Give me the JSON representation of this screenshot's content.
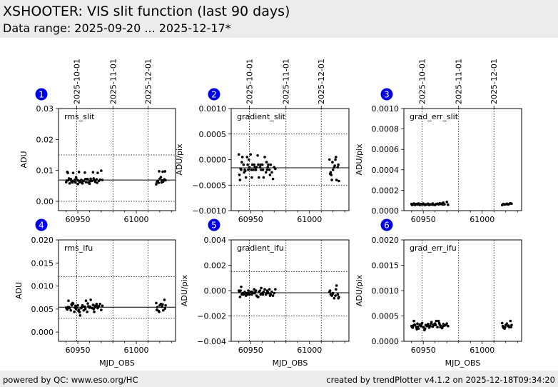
{
  "header": {
    "title": "XSHOOTER: VIS slit function (last 90 days)",
    "subtitle": "Data range: 2025-09-20 ... 2025-12-17*"
  },
  "footer": {
    "left": "powered by QC: www.eso.org/HC",
    "right": "created by trendPlotter v4.1.2 on 2025-12-18T09:34:20"
  },
  "colors": {
    "badge": "#0000ee",
    "points": "#000000",
    "header_bg": "#ececec"
  },
  "chart_data": [
    {
      "type": "scatter",
      "panel_number": "1",
      "label": "rms_slit",
      "ylabel": "ADU",
      "xlabel": "",
      "xlim": [
        60933.5,
        61033.5
      ],
      "ylim": [
        -0.003,
        0.03
      ],
      "yticks": [
        0.0,
        0.01,
        0.02,
        0.03
      ],
      "ytick_labels": [
        "0.00",
        "0.01",
        "0.02",
        "0.03"
      ],
      "xticks": [
        60950,
        61000
      ],
      "xtick_labels": [
        "60950",
        "61000"
      ],
      "top_date_ticks": [
        {
          "mjd": 60949,
          "label": "2025-10-01"
        },
        {
          "mjd": 60980,
          "label": "2025-11-01"
        },
        {
          "mjd": 61010,
          "label": "2025-12-01"
        }
      ],
      "reference_line": 0.0069,
      "threshold_lines": [
        0.015,
        0.0
      ],
      "grid": "dates-vertical",
      "points": {
        "x": [
          60940,
          60941,
          60942,
          60943,
          60944,
          60945,
          60946,
          60947,
          60948,
          60949,
          60950,
          60951,
          60952,
          60953,
          60954,
          60955,
          60956,
          60957,
          60958,
          60959,
          60960,
          60961,
          60962,
          60963,
          60964,
          60965,
          60966,
          60967,
          60968,
          60970,
          60971,
          60940.5,
          60942.5,
          60945.5,
          60948.5,
          60951.5,
          60954.5,
          60958.5,
          60963.5,
          60966.5,
          60941.5,
          60944.5,
          60947.5,
          60950.5,
          60953.5,
          60956.5,
          60960.5,
          60964.5,
          60969,
          61017,
          61018,
          61019,
          61020,
          61021,
          61022,
          61023,
          61024,
          61025,
          61017.5,
          61019.5,
          61022.5,
          61024.5,
          61018.5,
          61021.5
        ],
        "y": [
          0.0062,
          0.0095,
          0.0068,
          0.0058,
          0.0072,
          0.0063,
          0.0092,
          0.0066,
          0.0061,
          0.0071,
          0.0056,
          0.0095,
          0.0064,
          0.0069,
          0.0058,
          0.0066,
          0.0093,
          0.0062,
          0.0072,
          0.0061,
          0.0057,
          0.0073,
          0.0066,
          0.0094,
          0.0068,
          0.0063,
          0.0071,
          0.0092,
          0.0066,
          0.0099,
          0.0069,
          0.0067,
          0.0074,
          0.0061,
          0.0078,
          0.0062,
          0.0066,
          0.0071,
          0.0074,
          0.006,
          0.0092,
          0.0065,
          0.007,
          0.0067,
          0.006,
          0.0072,
          0.0065,
          0.0067,
          0.007,
          0.0055,
          0.0064,
          0.006,
          0.0073,
          0.0078,
          0.0068,
          0.0064,
          0.0071,
          0.0068,
          0.0062,
          0.0097,
          0.0096,
          0.0097,
          0.0066,
          0.0061
        ]
      }
    },
    {
      "type": "scatter",
      "panel_number": "2",
      "label": "gradient_slit",
      "ylabel": "ADU/pix",
      "xlabel": "",
      "xlim": [
        60933.5,
        61033.5
      ],
      "ylim": [
        -0.001,
        0.001
      ],
      "yticks": [
        -0.001,
        -0.0005,
        0.0,
        0.0005,
        0.001
      ],
      "ytick_labels": [
        "−0.0010",
        "−0.0005",
        "0.0000",
        "0.0005",
        "0.0010"
      ],
      "xticks": [
        60950,
        61000
      ],
      "xtick_labels": [
        "60950",
        "61000"
      ],
      "top_date_ticks": [
        {
          "mjd": 60949,
          "label": "2025-10-01"
        },
        {
          "mjd": 60980,
          "label": "2025-11-01"
        },
        {
          "mjd": 61010,
          "label": "2025-12-01"
        }
      ],
      "reference_line": -0.00016,
      "threshold_lines": [
        0.0005,
        -0.0005
      ],
      "grid": "dates-vertical",
      "points": {
        "x": [
          60940,
          60941,
          60942,
          60943,
          60944,
          60945,
          60946,
          60947,
          60948,
          60949,
          60950,
          60951,
          60952,
          60953,
          60954,
          60955,
          60956,
          60957,
          60958,
          60959,
          60960,
          60961,
          60962,
          60963,
          60964,
          60965,
          60966,
          60967,
          60968,
          60970,
          60971,
          60940.5,
          60942.5,
          60945.5,
          60948.5,
          60951.5,
          60954.5,
          60958.5,
          60963.5,
          60966.5,
          60941.5,
          60944.5,
          60947.5,
          60950.5,
          60953.5,
          60956.5,
          60960.5,
          60964.5,
          60969,
          61017,
          61018,
          61019,
          61020,
          61021,
          61022,
          61023,
          61024,
          61025,
          61017.5,
          61019.5,
          61022.5,
          61024.5,
          61018.5,
          61021.5
        ],
        "y": [
          0.0001,
          -0.0004,
          -0.0002,
          5e-05,
          -0.0001,
          -0.0002,
          -0.00035,
          5e-05,
          -0.0002,
          -0.00015,
          0.0001,
          -0.00035,
          -0.0002,
          -0.0001,
          -0.0002,
          -0.00015,
          8e-05,
          -0.00035,
          -0.00015,
          -0.0002,
          -0.0001,
          -0.00035,
          5e-05,
          -0.00025,
          -0.0002,
          -0.0001,
          -0.0002,
          -0.0001,
          -0.00025,
          -0.00015,
          -0.00018,
          -0.0003,
          -5e-05,
          -0.00022,
          0.0,
          -0.0001,
          -0.0002,
          -0.0001,
          -5e-05,
          -0.0003,
          -0.00018,
          -0.00025,
          -0.0001,
          -0.0002,
          -0.00015,
          -0.0001,
          -0.0002,
          -0.00015,
          -0.00038,
          0.0,
          -0.00025,
          -0.0004,
          -0.0002,
          -0.00015,
          0.0,
          -0.0004,
          -0.00015,
          -0.00042,
          -0.00028,
          -5e-05,
          5e-05,
          -0.0001,
          -0.0003,
          -0.00012
        ]
      }
    },
    {
      "type": "scatter",
      "panel_number": "3",
      "label": "grad_err_slit",
      "ylabel": "ADU/pix",
      "xlabel": "",
      "xlim": [
        60933.5,
        61033.5
      ],
      "ylim": [
        0.0,
        0.001
      ],
      "yticks": [
        0.0,
        0.0002,
        0.0004,
        0.0006,
        0.0008,
        0.001
      ],
      "ytick_labels": [
        "0.0000",
        "0.0002",
        "0.0004",
        "0.0006",
        "0.0008",
        "0.0010"
      ],
      "xticks": [
        60950,
        61000
      ],
      "xtick_labels": [
        "60950",
        "61000"
      ],
      "top_date_ticks": [
        {
          "mjd": 60949,
          "label": "2025-10-01"
        },
        {
          "mjd": 60980,
          "label": "2025-11-01"
        },
        {
          "mjd": 61010,
          "label": "2025-12-01"
        }
      ],
      "reference_line": null,
      "threshold_lines": [],
      "grid": "dates-vertical",
      "points": {
        "x": [
          60940,
          60941,
          60942,
          60943,
          60944,
          60945,
          60946,
          60947,
          60948,
          60949,
          60950,
          60951,
          60952,
          60953,
          60954,
          60955,
          60956,
          60957,
          60958,
          60959,
          60960,
          60961,
          60962,
          60963,
          60964,
          60965,
          60966,
          60967,
          60968,
          60970,
          60971,
          60940.5,
          60942.5,
          60945.5,
          60948.5,
          60951.5,
          60954.5,
          60958.5,
          60963.5,
          60966.5,
          61017,
          61018,
          61019,
          61020,
          61021,
          61022,
          61023,
          61024,
          61025
        ],
        "y": [
          6.5e-05,
          6e-05,
          7e-05,
          5.5e-05,
          6.5e-05,
          6e-05,
          7e-05,
          5.5e-05,
          6.5e-05,
          6e-05,
          7e-05,
          5.8e-05,
          6.2e-05,
          6e-05,
          6.8e-05,
          5.5e-05,
          6.2e-05,
          6e-05,
          7e-05,
          5.8e-05,
          5.5e-05,
          6.5e-05,
          6.8e-05,
          6e-05,
          7.2e-05,
          6.5e-05,
          7e-05,
          7.8e-05,
          6.2e-05,
          8.5e-05,
          5.8e-05,
          5.5e-05,
          6e-05,
          6.8e-05,
          6.2e-05,
          5.5e-05,
          6.2e-05,
          5.8e-05,
          6.5e-05,
          6e-05,
          5.5e-05,
          6.5e-05,
          6e-05,
          6.2e-05,
          6.8e-05,
          6e-05,
          6.5e-05,
          7.2e-05,
          6.8e-05
        ]
      }
    },
    {
      "type": "scatter",
      "panel_number": "4",
      "label": "rms_ifu",
      "ylabel": "ADU",
      "xlabel": "MJD_OBS",
      "xlim": [
        60933.5,
        61033.5
      ],
      "ylim": [
        -0.002,
        0.02
      ],
      "yticks": [
        0.0,
        0.005,
        0.01,
        0.015,
        0.02
      ],
      "ytick_labels": [
        "0.000",
        "0.005",
        "0.010",
        "0.015",
        "0.020"
      ],
      "xticks": [
        60950,
        61000
      ],
      "xtick_labels": [
        "60950",
        "61000"
      ],
      "top_date_ticks": [],
      "reference_line": 0.0054,
      "threshold_lines": [
        0.012,
        0.003
      ],
      "grid": "dates-vertical",
      "points": {
        "x": [
          60940,
          60941,
          60942,
          60943,
          60944,
          60945,
          60946,
          60947,
          60948,
          60949,
          60950,
          60951,
          60952,
          60953,
          60954,
          60955,
          60956,
          60957,
          60958,
          60959,
          60960,
          60961,
          60962,
          60963,
          60964,
          60965,
          60966,
          60967,
          60968,
          60970,
          60971,
          60940.5,
          60942.5,
          60945.5,
          60948.5,
          60951.5,
          60954.5,
          60958.5,
          60963.5,
          60966.5,
          60941.5,
          60944.5,
          60947.5,
          60950.5,
          60953.5,
          60956.5,
          60960.5,
          60964.5,
          60969,
          61017,
          61018,
          61019,
          61020,
          61021,
          61022,
          61023,
          61024,
          61025,
          61017.5,
          61019.5,
          61022.5,
          61024.5
        ],
        "y": [
          0.0053,
          0.0049,
          0.0068,
          0.0052,
          0.0047,
          0.0058,
          0.0062,
          0.0044,
          0.0057,
          0.0053,
          0.0058,
          0.0049,
          0.0036,
          0.0052,
          0.0058,
          0.0047,
          0.0055,
          0.0068,
          0.0044,
          0.0056,
          0.0053,
          0.007,
          0.0052,
          0.0059,
          0.0044,
          0.0054,
          0.0061,
          0.0052,
          0.0056,
          0.0048,
          0.0057,
          0.0051,
          0.0054,
          0.0063,
          0.005,
          0.0043,
          0.0055,
          0.0062,
          0.005,
          0.0056,
          0.0054,
          0.006,
          0.0053,
          0.0046,
          0.0055,
          0.005,
          0.0055,
          0.0057,
          0.0061,
          0.0063,
          0.0054,
          0.0046,
          0.0058,
          0.0061,
          0.0055,
          0.0047,
          0.007,
          0.0058,
          0.0048,
          0.0044,
          0.006,
          0.0051
        ]
      }
    },
    {
      "type": "scatter",
      "panel_number": "5",
      "label": "gradient_ifu",
      "ylabel": "ADU/pix",
      "xlabel": "MJD_OBS",
      "xlim": [
        60933.5,
        61033.5
      ],
      "ylim": [
        -0.004,
        0.004
      ],
      "yticks": [
        -0.004,
        -0.002,
        0.0,
        0.002,
        0.004
      ],
      "ytick_labels": [
        "−0.004",
        "−0.002",
        "0.000",
        "0.002",
        "0.004"
      ],
      "xticks": [
        60950,
        61000
      ],
      "xtick_labels": [
        "60950",
        "61000"
      ],
      "top_date_ticks": [],
      "reference_line": -0.00017,
      "threshold_lines": [
        0.0015,
        -0.002
      ],
      "grid": "dates-vertical",
      "points": {
        "x": [
          60940,
          60941,
          60942,
          60943,
          60944,
          60945,
          60946,
          60947,
          60948,
          60949,
          60950,
          60951,
          60952,
          60953,
          60954,
          60955,
          60956,
          60957,
          60958,
          60959,
          60960,
          60961,
          60962,
          60963,
          60964,
          60965,
          60966,
          60967,
          60968,
          60970,
          60971,
          60940.5,
          60942.5,
          60945.5,
          60948.5,
          60951.5,
          60954.5,
          60958.5,
          60963.5,
          60966.5,
          60941.5,
          60944.5,
          60947.5,
          60950.5,
          60953.5,
          60956.5,
          60960.5,
          60964.5,
          60969,
          61017,
          61018,
          61019,
          61020,
          61021,
          61022,
          61023,
          61024,
          61025,
          61017.5,
          61019.5,
          61022.5,
          61024.5
        ],
        "y": [
          0.0,
          -0.0005,
          0.0003,
          -0.0002,
          -0.0003,
          -0.0001,
          -0.0004,
          -0.0002,
          0.0,
          -0.0003,
          -0.0001,
          -0.0003,
          -0.0002,
          0.0001,
          -0.0001,
          -0.0004,
          -0.0005,
          -0.0001,
          0.0,
          0.0002,
          -0.0002,
          -0.0001,
          0.0001,
          -0.0003,
          0.0,
          -0.0002,
          0.0001,
          -0.0003,
          -0.0001,
          -0.0002,
          0.0001,
          -0.0001,
          -0.0003,
          -0.0002,
          -0.0002,
          -0.0001,
          0.0,
          -0.0003,
          -0.0002,
          -0.0004,
          0.0,
          -0.0002,
          -0.0003,
          -0.0001,
          -0.0002,
          -0.0005,
          -0.0003,
          -0.0001,
          -0.0004,
          -0.0001,
          -0.0003,
          -0.0004,
          -0.0002,
          -0.0006,
          -0.0004,
          0.0004,
          -0.0003,
          -0.0005,
          0.0,
          -0.0003,
          0.0001,
          -0.0006
        ]
      }
    },
    {
      "type": "scatter",
      "panel_number": "6",
      "label": "grad_err_ifu",
      "ylabel": "ADU/pix",
      "xlabel": "MJD_OBS",
      "xlim": [
        60933.5,
        61033.5
      ],
      "ylim": [
        0.0,
        0.002
      ],
      "yticks": [
        0.0,
        0.0005,
        0.001,
        0.0015,
        0.002
      ],
      "ytick_labels": [
        "0.0000",
        "0.0005",
        "0.0010",
        "0.0015",
        "0.0020"
      ],
      "xticks": [
        60950,
        61000
      ],
      "xtick_labels": [
        "60950",
        "61000"
      ],
      "top_date_ticks": [],
      "reference_line": null,
      "threshold_lines": [],
      "grid": "dates-vertical",
      "points": {
        "x": [
          60940,
          60941,
          60942,
          60943,
          60944,
          60945,
          60946,
          60947,
          60948,
          60949,
          60950,
          60951,
          60952,
          60953,
          60954,
          60955,
          60956,
          60957,
          60958,
          60959,
          60960,
          60961,
          60962,
          60963,
          60964,
          60965,
          60966,
          60967,
          60968,
          60970,
          60971,
          60940.5,
          60942.5,
          60945.5,
          60948.5,
          60951.5,
          60954.5,
          60958.5,
          60963.5,
          60966.5,
          60941.5,
          60944.5,
          60947.5,
          60950.5,
          60953.5,
          60956.5,
          60960.5,
          60964.5,
          60969,
          61017,
          61018,
          61019,
          61020,
          61021,
          61022,
          61023,
          61024,
          61025,
          61017.5,
          61019.5,
          61022.5,
          61024.5
        ],
        "y": [
          0.0003,
          0.00027,
          0.0004,
          0.00032,
          0.00028,
          0.00035,
          0.00025,
          0.00033,
          0.0003,
          0.00036,
          0.00028,
          0.00022,
          0.00032,
          0.0003,
          0.00034,
          0.00027,
          0.0003,
          0.00038,
          0.00029,
          0.00032,
          0.00035,
          0.0004,
          0.00028,
          0.0004,
          0.00033,
          0.0003,
          0.00026,
          0.00034,
          0.00031,
          0.00035,
          0.0003,
          0.00028,
          0.00033,
          0.00029,
          0.00034,
          0.00025,
          0.00031,
          0.00033,
          0.00036,
          0.00029,
          0.00031,
          0.00024,
          0.00033,
          0.00027,
          0.00031,
          0.00035,
          0.00032,
          0.00028,
          0.00032,
          0.00036,
          0.00027,
          0.00025,
          0.00032,
          0.00035,
          0.0003,
          0.00028,
          0.0004,
          0.00032,
          0.0003,
          0.00028,
          0.00031,
          0.00028
        ]
      }
    }
  ]
}
